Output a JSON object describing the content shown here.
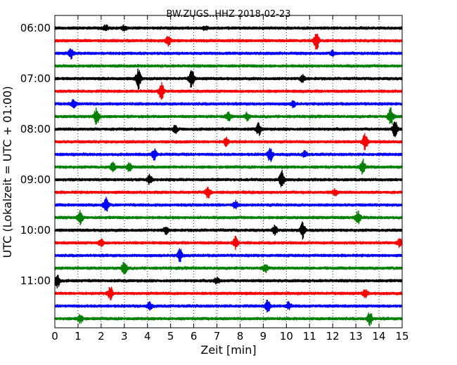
{
  "chart_data": {
    "type": "line",
    "title": "BW.ZUGS..HHZ 2018-02-23",
    "xlabel": "Zeit  [min]",
    "ylabel": "UTC (Lokalzeit = UTC + 01:00)",
    "xlim": [
      0,
      15
    ],
    "x_ticks": [
      "0",
      "1",
      "2",
      "3",
      "4",
      "5",
      "6",
      "7",
      "8",
      "9",
      "10",
      "11",
      "12",
      "13",
      "14",
      "15"
    ],
    "y_tick_labels": [
      "06:00",
      "07:00",
      "08:00",
      "09:00",
      "10:00",
      "11:00"
    ],
    "y_tick_rows": [
      0,
      4,
      8,
      12,
      16,
      20
    ],
    "grid": "vertical dotted",
    "trace_colors": [
      "#000000",
      "#ff0000",
      "#0000ff",
      "#008000"
    ],
    "row_interval_min": 15,
    "rows": [
      {
        "start": "06:00",
        "events": [
          {
            "t": 2.2,
            "a": 4
          },
          {
            "t": 3.0,
            "a": 4
          },
          {
            "t": 6.5,
            "a": 3
          }
        ]
      },
      {
        "start": "06:15",
        "events": [
          {
            "t": 4.9,
            "a": 6
          },
          {
            "t": 11.3,
            "a": 13
          }
        ]
      },
      {
        "start": "06:30",
        "events": [
          {
            "t": 0.7,
            "a": 7
          },
          {
            "t": 12.0,
            "a": 3
          }
        ]
      },
      {
        "start": "06:45",
        "events": []
      },
      {
        "start": "07:00",
        "events": [
          {
            "t": 3.6,
            "a": 14
          },
          {
            "t": 5.9,
            "a": 13
          },
          {
            "t": 10.7,
            "a": 5
          }
        ]
      },
      {
        "start": "07:15",
        "events": [
          {
            "t": 4.6,
            "a": 13
          }
        ]
      },
      {
        "start": "07:30",
        "events": [
          {
            "t": 0.8,
            "a": 6
          },
          {
            "t": 10.3,
            "a": 4
          }
        ]
      },
      {
        "start": "07:45",
        "events": [
          {
            "t": 1.8,
            "a": 12
          },
          {
            "t": 7.5,
            "a": 6
          },
          {
            "t": 8.3,
            "a": 5
          },
          {
            "t": 14.5,
            "a": 14
          }
        ]
      },
      {
        "start": "08:00",
        "events": [
          {
            "t": 5.2,
            "a": 5
          },
          {
            "t": 8.8,
            "a": 8
          },
          {
            "t": 14.7,
            "a": 12
          }
        ]
      },
      {
        "start": "08:15",
        "events": [
          {
            "t": 7.4,
            "a": 6
          },
          {
            "t": 13.4,
            "a": 12
          }
        ]
      },
      {
        "start": "08:30",
        "events": [
          {
            "t": 4.3,
            "a": 7
          },
          {
            "t": 9.3,
            "a": 10
          },
          {
            "t": 10.8,
            "a": 4
          }
        ]
      },
      {
        "start": "08:45",
        "events": [
          {
            "t": 2.5,
            "a": 6
          },
          {
            "t": 3.2,
            "a": 6
          },
          {
            "t": 13.3,
            "a": 10
          }
        ]
      },
      {
        "start": "09:00",
        "events": [
          {
            "t": 4.1,
            "a": 7
          },
          {
            "t": 9.8,
            "a": 12
          }
        ]
      },
      {
        "start": "09:15",
        "events": [
          {
            "t": 6.6,
            "a": 9
          },
          {
            "t": 12.1,
            "a": 4
          }
        ]
      },
      {
        "start": "09:30",
        "events": [
          {
            "t": 2.2,
            "a": 11
          },
          {
            "t": 7.8,
            "a": 5
          }
        ]
      },
      {
        "start": "09:45",
        "events": [
          {
            "t": 1.1,
            "a": 9
          },
          {
            "t": 13.1,
            "a": 9
          }
        ]
      },
      {
        "start": "10:00",
        "events": [
          {
            "t": 4.8,
            "a": 5
          },
          {
            "t": 9.5,
            "a": 6
          },
          {
            "t": 10.7,
            "a": 12
          }
        ]
      },
      {
        "start": "10:15",
        "events": [
          {
            "t": 2.0,
            "a": 5
          },
          {
            "t": 7.8,
            "a": 9
          },
          {
            "t": 14.9,
            "a": 6
          }
        ]
      },
      {
        "start": "10:30",
        "events": [
          {
            "t": 5.4,
            "a": 9
          }
        ]
      },
      {
        "start": "10:45",
        "events": [
          {
            "t": 3.0,
            "a": 10
          },
          {
            "t": 9.1,
            "a": 5
          }
        ]
      },
      {
        "start": "11:00",
        "events": [
          {
            "t": 0.1,
            "a": 11
          },
          {
            "t": 7.0,
            "a": 5
          }
        ]
      },
      {
        "start": "11:15",
        "events": [
          {
            "t": 2.4,
            "a": 9
          },
          {
            "t": 13.4,
            "a": 5
          }
        ]
      },
      {
        "start": "11:30",
        "events": [
          {
            "t": 4.1,
            "a": 5
          },
          {
            "t": 9.2,
            "a": 9
          },
          {
            "t": 10.1,
            "a": 5
          }
        ]
      },
      {
        "start": "11:45",
        "events": [
          {
            "t": 1.1,
            "a": 6
          },
          {
            "t": 13.6,
            "a": 10
          }
        ]
      }
    ]
  }
}
